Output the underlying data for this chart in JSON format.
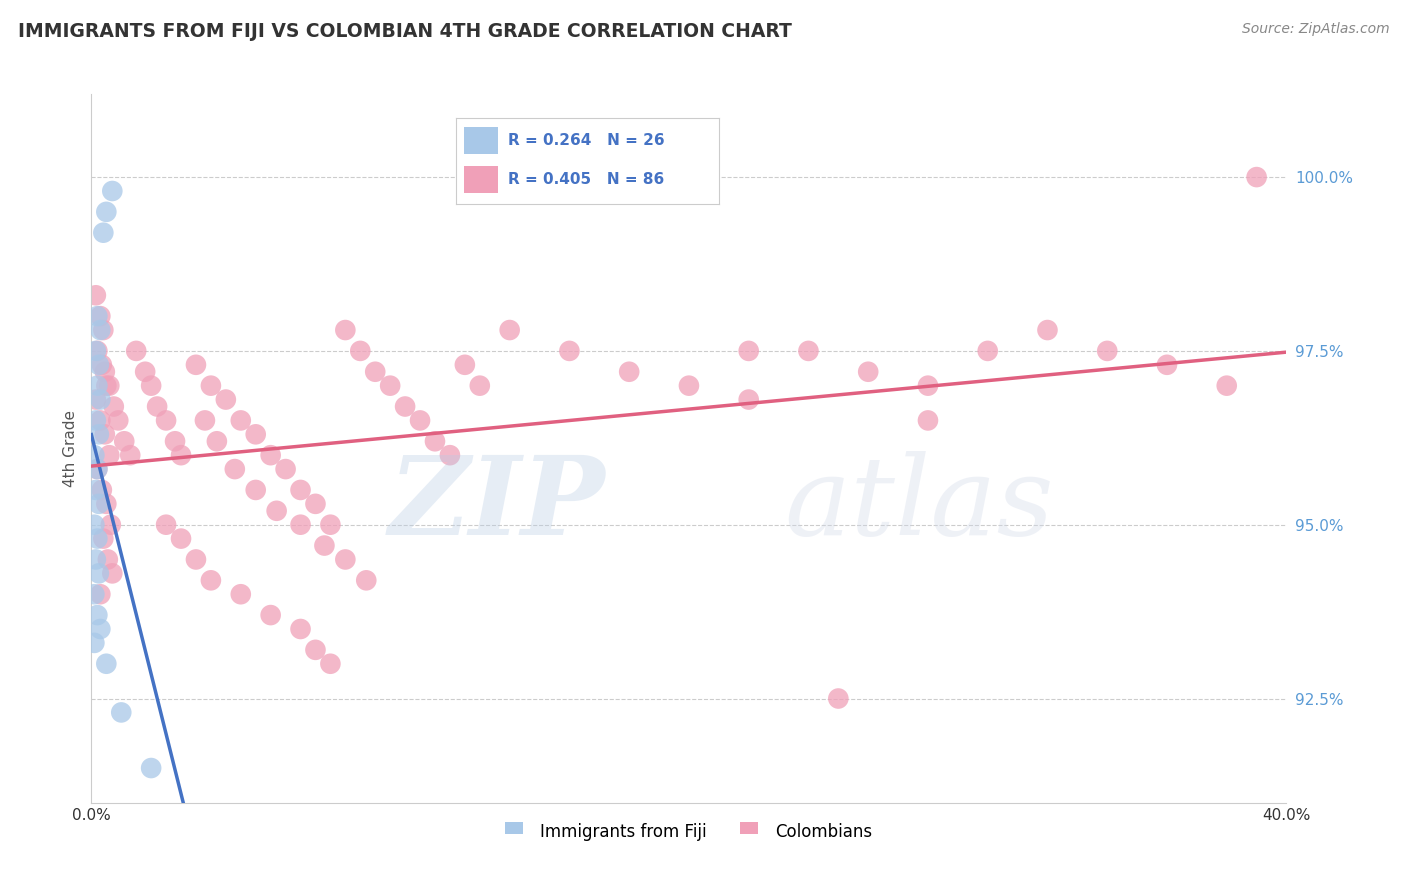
{
  "title": "IMMIGRANTS FROM FIJI VS COLOMBIAN 4TH GRADE CORRELATION CHART",
  "source": "Source: ZipAtlas.com",
  "ylabel": "4th Grade",
  "ytick_values": [
    92.5,
    95.0,
    97.5,
    100.0
  ],
  "xlim": [
    0.0,
    40.0
  ],
  "ylim": [
    91.0,
    101.2
  ],
  "legend_fiji_R": "R = 0.264",
  "legend_fiji_N": "N = 26",
  "legend_colombian_R": "R = 0.405",
  "legend_colombian_N": "N = 86",
  "fiji_color": "#a8c8e8",
  "colombian_color": "#f0a0b8",
  "fiji_line_color": "#4472c4",
  "colombian_line_color": "#e06080",
  "background_color": "#ffffff",
  "fiji_points": [
    [
      0.5,
      99.5
    ],
    [
      0.7,
      99.8
    ],
    [
      0.4,
      99.2
    ],
    [
      0.2,
      98.0
    ],
    [
      0.3,
      97.8
    ],
    [
      0.15,
      97.5
    ],
    [
      0.25,
      97.3
    ],
    [
      0.2,
      97.0
    ],
    [
      0.3,
      96.8
    ],
    [
      0.15,
      96.5
    ],
    [
      0.25,
      96.3
    ],
    [
      0.1,
      96.0
    ],
    [
      0.2,
      95.8
    ],
    [
      0.15,
      95.5
    ],
    [
      0.25,
      95.3
    ],
    [
      0.1,
      95.0
    ],
    [
      0.2,
      94.8
    ],
    [
      0.15,
      94.5
    ],
    [
      0.25,
      94.3
    ],
    [
      0.1,
      94.0
    ],
    [
      0.2,
      93.7
    ],
    [
      0.3,
      93.5
    ],
    [
      0.1,
      93.3
    ],
    [
      0.5,
      93.0
    ],
    [
      1.0,
      92.3
    ],
    [
      2.0,
      91.5
    ]
  ],
  "colombian_points": [
    [
      0.15,
      98.3
    ],
    [
      0.3,
      98.0
    ],
    [
      0.4,
      97.8
    ],
    [
      0.2,
      97.5
    ],
    [
      0.35,
      97.3
    ],
    [
      0.5,
      97.0
    ],
    [
      0.15,
      96.8
    ],
    [
      0.3,
      96.5
    ],
    [
      0.45,
      96.3
    ],
    [
      0.6,
      96.0
    ],
    [
      0.2,
      95.8
    ],
    [
      0.35,
      95.5
    ],
    [
      0.5,
      95.3
    ],
    [
      0.65,
      95.0
    ],
    [
      0.4,
      94.8
    ],
    [
      0.55,
      94.5
    ],
    [
      0.7,
      94.3
    ],
    [
      0.3,
      94.0
    ],
    [
      0.45,
      97.2
    ],
    [
      0.6,
      97.0
    ],
    [
      0.75,
      96.7
    ],
    [
      0.9,
      96.5
    ],
    [
      1.1,
      96.2
    ],
    [
      1.3,
      96.0
    ],
    [
      1.5,
      97.5
    ],
    [
      1.8,
      97.2
    ],
    [
      2.0,
      97.0
    ],
    [
      2.2,
      96.7
    ],
    [
      2.5,
      96.5
    ],
    [
      2.8,
      96.2
    ],
    [
      3.0,
      96.0
    ],
    [
      3.5,
      97.3
    ],
    [
      4.0,
      97.0
    ],
    [
      4.5,
      96.8
    ],
    [
      5.0,
      96.5
    ],
    [
      5.5,
      96.3
    ],
    [
      6.0,
      96.0
    ],
    [
      6.5,
      95.8
    ],
    [
      7.0,
      95.5
    ],
    [
      7.5,
      95.3
    ],
    [
      8.0,
      95.0
    ],
    [
      8.5,
      97.8
    ],
    [
      9.0,
      97.5
    ],
    [
      9.5,
      97.2
    ],
    [
      10.0,
      97.0
    ],
    [
      10.5,
      96.7
    ],
    [
      11.0,
      96.5
    ],
    [
      11.5,
      96.2
    ],
    [
      12.0,
      96.0
    ],
    [
      12.5,
      97.3
    ],
    [
      13.0,
      97.0
    ],
    [
      3.8,
      96.5
    ],
    [
      4.2,
      96.2
    ],
    [
      4.8,
      95.8
    ],
    [
      5.5,
      95.5
    ],
    [
      6.2,
      95.2
    ],
    [
      7.0,
      95.0
    ],
    [
      7.8,
      94.7
    ],
    [
      8.5,
      94.5
    ],
    [
      9.2,
      94.2
    ],
    [
      2.5,
      95.0
    ],
    [
      3.0,
      94.8
    ],
    [
      3.5,
      94.5
    ],
    [
      4.0,
      94.2
    ],
    [
      5.0,
      94.0
    ],
    [
      6.0,
      93.7
    ],
    [
      7.0,
      93.5
    ],
    [
      7.5,
      93.2
    ],
    [
      8.0,
      93.0
    ],
    [
      14.0,
      97.8
    ],
    [
      16.0,
      97.5
    ],
    [
      18.0,
      97.2
    ],
    [
      20.0,
      97.0
    ],
    [
      22.0,
      96.8
    ],
    [
      24.0,
      97.5
    ],
    [
      26.0,
      97.2
    ],
    [
      28.0,
      97.0
    ],
    [
      30.0,
      97.5
    ],
    [
      32.0,
      97.8
    ],
    [
      34.0,
      97.5
    ],
    [
      36.0,
      97.3
    ],
    [
      38.0,
      97.0
    ],
    [
      39.0,
      100.0
    ],
    [
      22.0,
      97.5
    ],
    [
      25.0,
      92.5
    ],
    [
      28.0,
      96.5
    ]
  ]
}
